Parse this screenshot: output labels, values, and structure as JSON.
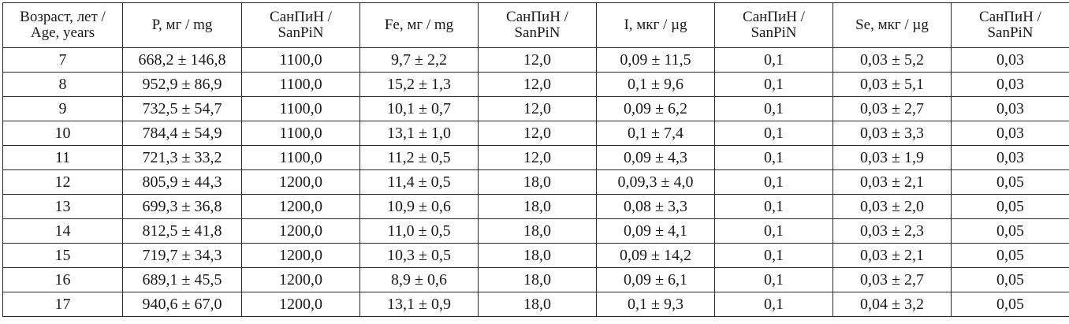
{
  "table": {
    "headers": [
      {
        "line1": "Возраст, лет /",
        "line2": "Age, years"
      },
      {
        "line1": "P, мг / mg",
        "line2": ""
      },
      {
        "line1": "СанПиН /",
        "line2": "SanPiN"
      },
      {
        "line1": "Fe, мг / mg",
        "line2": ""
      },
      {
        "line1": "СанПиН /",
        "line2": "SanPiN"
      },
      {
        "line1": "I, мкг / µg",
        "line2": ""
      },
      {
        "line1": "СанПиН /",
        "line2": "SanPiN"
      },
      {
        "line1": "Se, мкг / µg",
        "line2": ""
      },
      {
        "line1": "СанПиН /",
        "line2": "SanPiN"
      }
    ],
    "rows": [
      [
        "7",
        "668,2 ± 146,8",
        "1100,0",
        "9,7 ± 2,2",
        "12,0",
        "0,09 ± 11,5",
        "0,1",
        "0,03 ± 5,2",
        "0,03"
      ],
      [
        "8",
        "952,9 ± 86,9",
        "1100,0",
        "15,2 ± 1,3",
        "12,0",
        "0,1 ± 9,6",
        "0,1",
        "0,03 ± 5,1",
        "0,03"
      ],
      [
        "9",
        "732,5 ± 54,7",
        "1100,0",
        "10,1 ± 0,7",
        "12,0",
        "0,09 ± 6,2",
        "0,1",
        "0,03 ± 2,7",
        "0,03"
      ],
      [
        "10",
        "784,4 ± 54,9",
        "1100,0",
        "13,1 ± 1,0",
        "12,0",
        "0,1 ± 7,4",
        "0,1",
        "0,03 ± 3,3",
        "0,03"
      ],
      [
        "11",
        "721,3 ± 33,2",
        "1100,0",
        "11,2 ± 0,5",
        "12,0",
        "0,09 ± 4,3",
        "0,1",
        "0,03 ± 1,9",
        "0,03"
      ],
      [
        "12",
        "805,9 ± 44,3",
        "1200,0",
        "11,4 ± 0,5",
        "18,0",
        "0,09,3 ± 4,0",
        "0,1",
        "0,03 ± 2,1",
        "0,05"
      ],
      [
        "13",
        "699,3 ± 36,8",
        "1200,0",
        "10,9 ± 0,6",
        "18,0",
        "0,08 ± 3,3",
        "0,1",
        "0,03 ± 2,0",
        "0,05"
      ],
      [
        "14",
        "812,5 ± 41,8",
        "1200,0",
        "11,0 ± 0,5",
        "18,0",
        "0,09 ± 4,1",
        "0,1",
        "0,03 ± 2,3",
        "0,05"
      ],
      [
        "15",
        "719,7 ± 34,3",
        "1200,0",
        "10,3 ± 0,5",
        "18,0",
        "0,09 ± 14,2",
        "0,1",
        "0,03 ± 2,1",
        "0,05"
      ],
      [
        "16",
        "689,1 ± 45,5",
        "1200,0",
        "8,9 ± 0,6",
        "18,0",
        "0,09 ± 6,1",
        "0,1",
        "0,03 ± 2,7",
        "0,05"
      ],
      [
        "17",
        "940,6 ± 67,0",
        "1200,0",
        "13,1 ± 0,9",
        "18,0",
        "0,1 ± 9,3",
        "0,1",
        "0,04 ± 3,2",
        "0,05"
      ]
    ]
  }
}
